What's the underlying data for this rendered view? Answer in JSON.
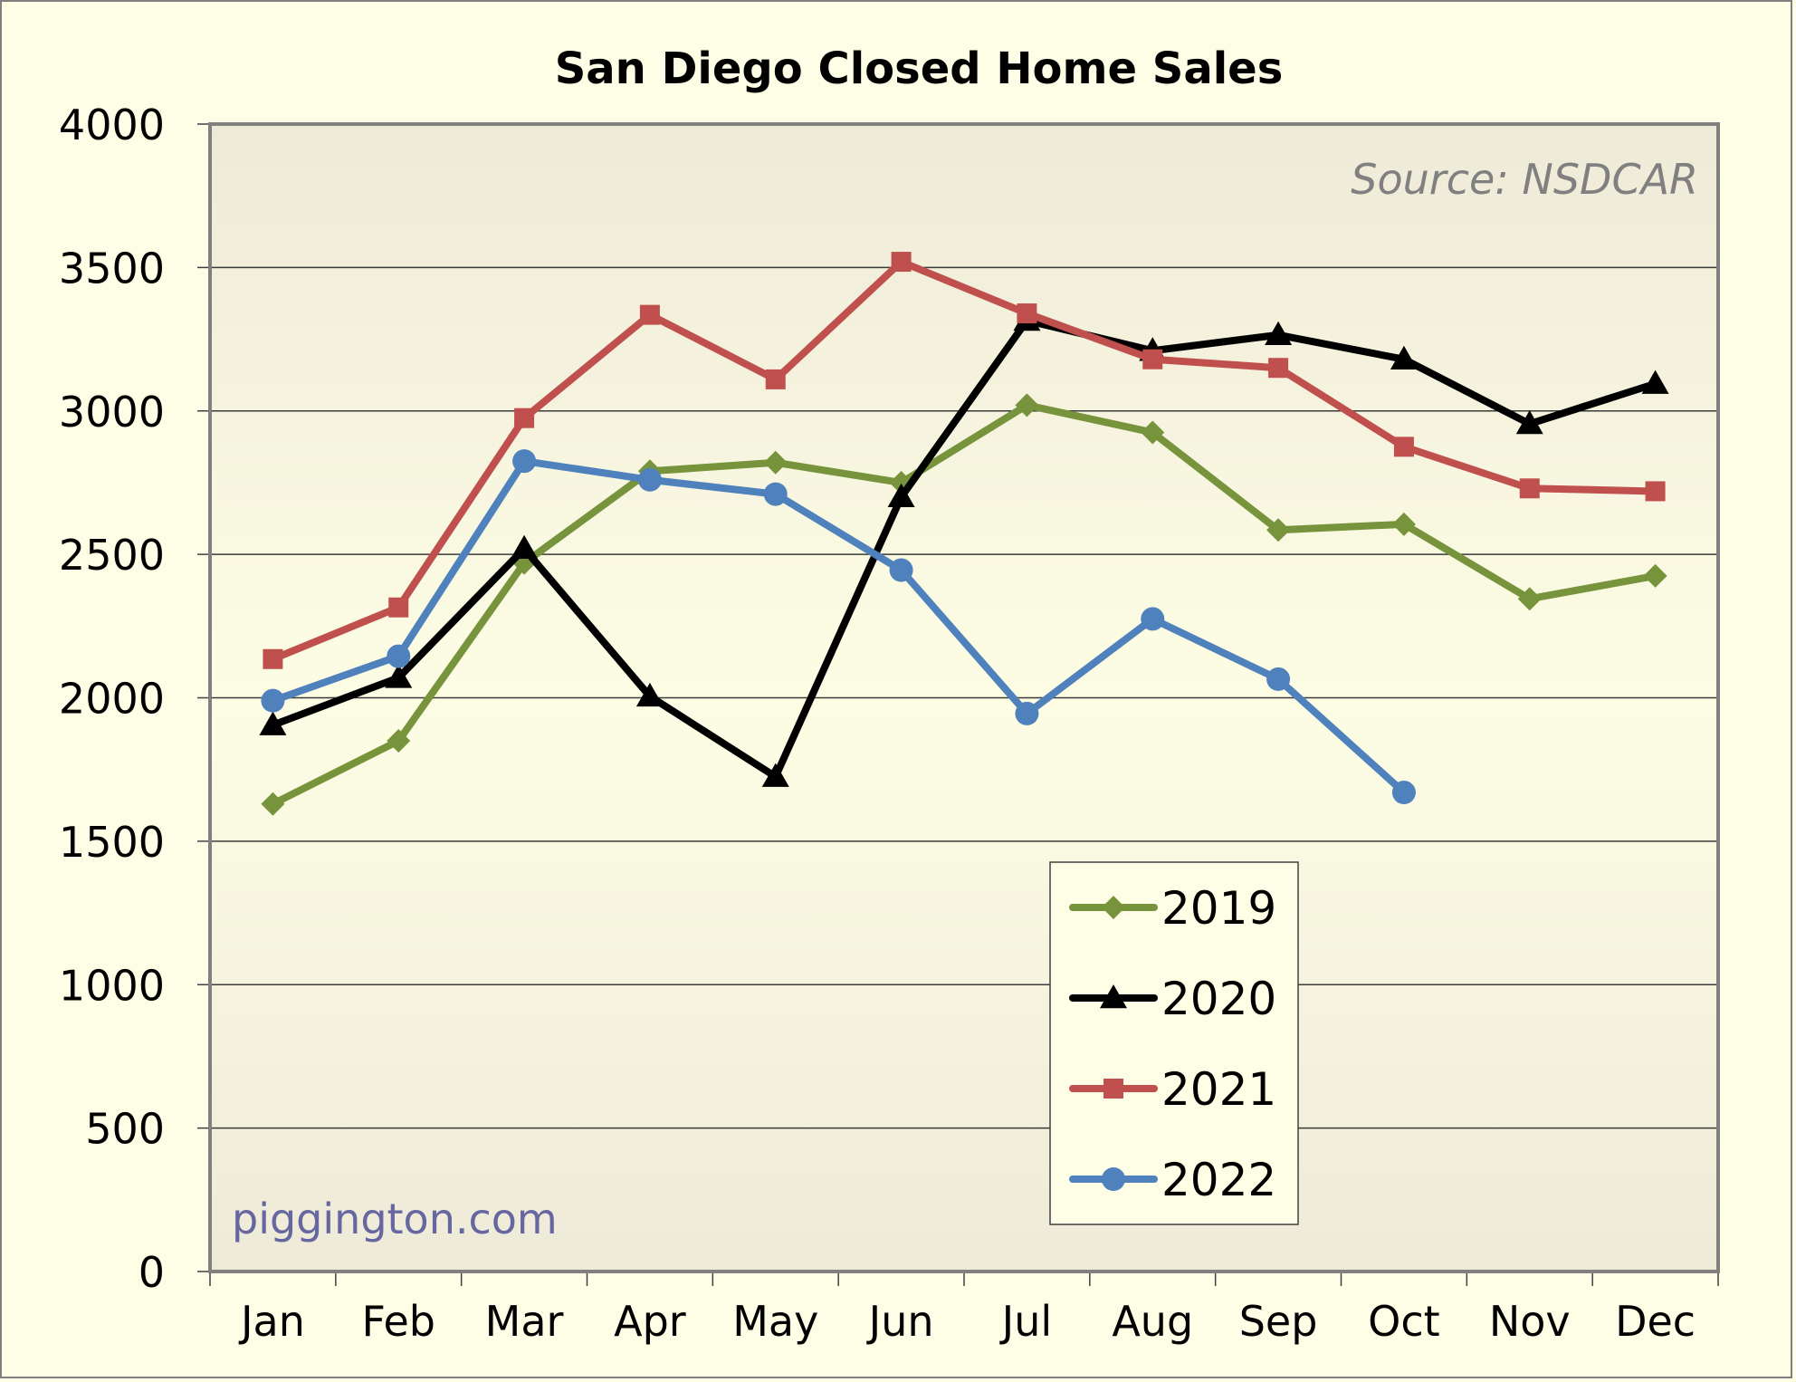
{
  "chart_data": {
    "type": "line",
    "title": "San Diego Closed Home Sales",
    "xlabel": "",
    "ylabel": "",
    "categories": [
      "Jan",
      "Feb",
      "Mar",
      "Apr",
      "May",
      "Jun",
      "Jul",
      "Aug",
      "Sep",
      "Oct",
      "Nov",
      "Dec"
    ],
    "ylim": [
      0,
      4000
    ],
    "yticks": [
      "0",
      "500",
      "1000",
      "1500",
      "2000",
      "2500",
      "3000",
      "3500",
      "4000"
    ],
    "ytick_values": [
      0,
      500,
      1000,
      1500,
      2000,
      2500,
      3000,
      3500,
      4000
    ],
    "grid": true,
    "legend_position": "bottom-right-center",
    "annotations": {
      "source": "Source: NSDCAR",
      "watermark": "piggington.com"
    },
    "series": [
      {
        "name": "2019",
        "color": "#77933c",
        "marker": "diamond",
        "values": [
          1630,
          1850,
          2470,
          2790,
          2820,
          2750,
          3020,
          2925,
          2585,
          2605,
          2345,
          2425
        ]
      },
      {
        "name": "2020",
        "color": "#000000",
        "marker": "triangle",
        "values": [
          1905,
          2070,
          2520,
          2005,
          1725,
          2700,
          3315,
          3210,
          3265,
          3180,
          2955,
          3095
        ]
      },
      {
        "name": "2021",
        "color": "#c0504d",
        "marker": "square",
        "values": [
          2135,
          2315,
          2975,
          3335,
          3110,
          3520,
          3340,
          3180,
          3150,
          2875,
          2730,
          2720
        ]
      },
      {
        "name": "2022",
        "color": "#4f81bd",
        "marker": "circle",
        "values": [
          1990,
          2145,
          2825,
          2760,
          2710,
          2445,
          1945,
          2275,
          2065,
          1670,
          null,
          null
        ]
      }
    ]
  }
}
